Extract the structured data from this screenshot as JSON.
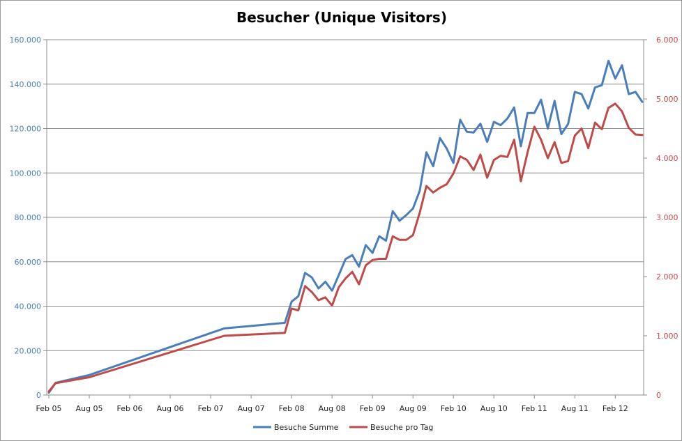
{
  "chart_data": {
    "type": "line",
    "title": "Besucher (Unique Visitors)",
    "xlabel": "",
    "ylabel": "",
    "x_tick_labels": [
      "Feb 05",
      "Aug 05",
      "Feb 06",
      "Aug 06",
      "Feb 07",
      "Aug 07",
      "Feb 08",
      "Aug 08",
      "Feb 09",
      "Aug 09",
      "Feb 10",
      "Aug 10",
      "Feb 11",
      "Aug 11",
      "Feb 12"
    ],
    "y_left": {
      "lim": [
        0,
        160000
      ],
      "ticks": [
        0,
        20000,
        40000,
        60000,
        80000,
        100000,
        120000,
        140000,
        160000
      ],
      "tick_labels": [
        "0",
        "20.000",
        "40.000",
        "60.000",
        "80.000",
        "100.000",
        "120.000",
        "140.000",
        "160.000"
      ],
      "color": "#4a7ebb"
    },
    "y_right": {
      "lim": [
        0,
        6000
      ],
      "ticks": [
        0,
        1000,
        2000,
        3000,
        4000,
        5000,
        6000
      ],
      "tick_labels": [
        "0",
        "1.000",
        "2.000",
        "3.000",
        "4.000",
        "5.000",
        "6.000"
      ],
      "color": "#be4b48"
    },
    "grid": "horizontal",
    "legend_position": "bottom",
    "series": [
      {
        "name": "Besuche Summe",
        "axis": "left",
        "color": "#4a7ebb",
        "x": [
          0,
          1,
          6,
          26,
          35,
          36,
          37,
          38,
          39,
          40,
          41,
          42,
          43,
          44,
          45,
          46,
          47,
          48,
          49,
          50,
          51,
          52,
          53,
          54,
          55,
          56,
          57,
          58,
          59,
          60,
          61,
          62,
          63,
          64,
          65,
          66,
          67,
          68,
          69,
          70,
          71,
          72,
          73,
          74,
          75,
          76,
          77,
          78,
          79,
          80,
          81,
          82,
          83,
          84,
          85,
          86,
          87,
          88
        ],
        "values": [
          1000,
          5500,
          9000,
          30000,
          32500,
          42000,
          44500,
          55000,
          53000,
          48000,
          51000,
          47000,
          54000,
          61200,
          63000,
          57800,
          67500,
          64000,
          71500,
          69500,
          82800,
          78500,
          81000,
          84000,
          92000,
          109300,
          103000,
          115700,
          111000,
          104500,
          124000,
          118500,
          118200,
          122200,
          114000,
          123000,
          121500,
          124500,
          129500,
          112000,
          127000,
          127000,
          133000,
          120000,
          132500,
          117500,
          122000,
          136500,
          135500,
          129000,
          138500,
          139500,
          150500,
          142500,
          148500,
          135500,
          136500,
          132000
        ]
      },
      {
        "name": "Besuche pro Tag",
        "axis": "right",
        "color": "#be4b48",
        "x": [
          0,
          1,
          6,
          26,
          35,
          36,
          37,
          38,
          39,
          40,
          41,
          42,
          43,
          44,
          45,
          46,
          47,
          48,
          49,
          50,
          51,
          52,
          53,
          54,
          55,
          56,
          57,
          58,
          59,
          60,
          61,
          62,
          63,
          64,
          65,
          66,
          67,
          68,
          69,
          70,
          71,
          72,
          73,
          74,
          75,
          76,
          77,
          78,
          79,
          80,
          81,
          82,
          83,
          84,
          85,
          86,
          87,
          88
        ],
        "values": [
          60,
          200,
          300,
          1000,
          1050,
          1460,
          1430,
          1840,
          1740,
          1600,
          1650,
          1510,
          1820,
          1970,
          2080,
          1870,
          2190,
          2280,
          2300,
          2300,
          2680,
          2620,
          2620,
          2700,
          3080,
          3530,
          3420,
          3500,
          3560,
          3740,
          4030,
          3970,
          3800,
          4060,
          3670,
          3970,
          4040,
          4020,
          4310,
          3610,
          4100,
          4530,
          4310,
          4000,
          4270,
          3920,
          3950,
          4380,
          4500,
          4170,
          4600,
          4490,
          4850,
          4920,
          4790,
          4510,
          4400,
          4390
        ]
      }
    ]
  }
}
